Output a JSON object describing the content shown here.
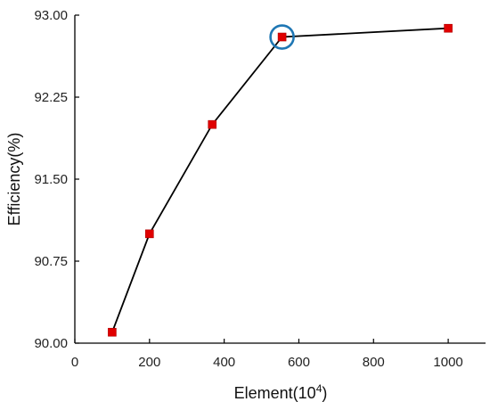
{
  "chart_data": {
    "type": "line",
    "title": "",
    "xlabel": "Element(10",
    "xlabel_sup": "4",
    "xlabel_suffix": ")",
    "ylabel": "Efficiency(%)",
    "xlim": [
      0,
      1100
    ],
    "ylim": [
      90.0,
      93.0
    ],
    "xticks": [
      0,
      200,
      400,
      600,
      800,
      1000
    ],
    "yticks": [
      90.0,
      90.75,
      91.5,
      92.25,
      93.0
    ],
    "xtick_labels": [
      "0",
      "200",
      "400",
      "600",
      "800",
      "1000"
    ],
    "ytick_labels": [
      "90.00",
      "90.75",
      "91.50",
      "92.25",
      "93.00"
    ],
    "grid": false,
    "series": [
      {
        "x": [
          100,
          200,
          368,
          555,
          1000
        ],
        "y": [
          90.1,
          91.0,
          92.0,
          92.8,
          92.88
        ],
        "marker": "square",
        "marker_color": "#e00000",
        "line_color": "#000000"
      }
    ],
    "highlight": {
      "x": 555,
      "y": 92.8,
      "color": "#1f77b4",
      "shape": "circle"
    }
  }
}
